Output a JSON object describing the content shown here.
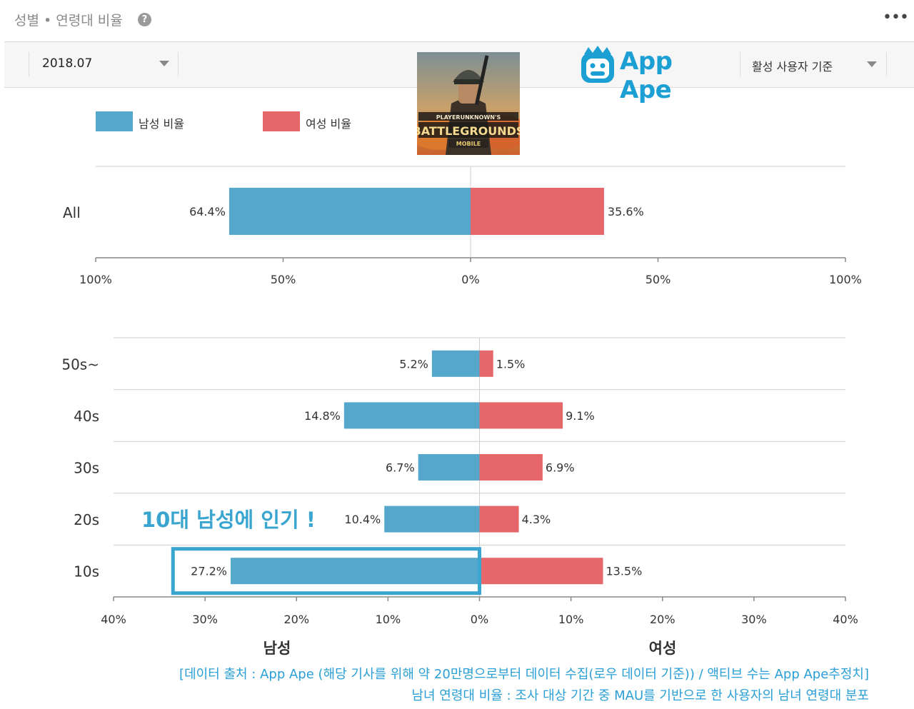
{
  "header": {
    "title": "성별 • 연령대 비율",
    "help_icon": "question-icon",
    "more_icon": "more-horizontal-icon",
    "more_glyph": "•••"
  },
  "toolbar": {
    "date_value": "2018.07",
    "basis_value": "활성 사용자 기준",
    "logo_text": "App Ape",
    "logo_color": "#1c9fd3"
  },
  "game_icon": {
    "name": "pubg-mobile-icon",
    "line1": "PLAYERUNKNOWN'S",
    "line2": "BATTLEGROUNDS",
    "line3": "MOBILE"
  },
  "colors": {
    "male": "#55a8cc",
    "female": "#e5676a",
    "highlight": "#3aa6d0",
    "grid": "#cfcfcf",
    "axis": "#888888"
  },
  "legend": {
    "male": "남성 비율",
    "female": "여성 비율"
  },
  "chart_data": [
    {
      "type": "bar",
      "orientation": "horizontal-diverging",
      "categories": [
        "All"
      ],
      "series": [
        {
          "name": "남성 비율",
          "values": [
            64.4
          ]
        },
        {
          "name": "여성 비율",
          "values": [
            35.6
          ]
        }
      ],
      "value_labels": {
        "male": [
          "64.4%"
        ],
        "female": [
          "35.6%"
        ]
      },
      "xlim": [
        -100,
        100
      ],
      "x_ticks": [
        "100%",
        "50%",
        "0%",
        "50%",
        "100%"
      ],
      "grid": true
    },
    {
      "type": "bar",
      "orientation": "horizontal-diverging",
      "categories": [
        "50s~",
        "40s",
        "30s",
        "20s",
        "10s"
      ],
      "series": [
        {
          "name": "남성",
          "values": [
            5.2,
            14.8,
            6.7,
            10.4,
            27.2
          ]
        },
        {
          "name": "여성",
          "values": [
            1.5,
            9.1,
            6.9,
            4.3,
            13.5
          ]
        }
      ],
      "value_labels": {
        "male": [
          "5.2%",
          "14.8%",
          "6.7%",
          "10.4%",
          "27.2%"
        ],
        "female": [
          "1.5%",
          "9.1%",
          "6.9%",
          "4.3%",
          "13.5%"
        ]
      },
      "xlim": [
        -40,
        40
      ],
      "x_ticks": [
        "40%",
        "30%",
        "20%",
        "10%",
        "0%",
        "10%",
        "20%",
        "30%",
        "40%"
      ],
      "xlabel_left": "남성",
      "xlabel_right": "여성",
      "annotation": "10대 남성에 인기 !",
      "highlight_category": "10s",
      "grid": true
    }
  ],
  "notes": {
    "line1": "[데이터 출처 : App Ape (해당 기사를 위해 약 20만명으로부터 데이터 수집(로우 데이터 기준)) / 액티브 수는 App Ape추정치]",
    "line2": "남녀 연령대 비율 : 조사 대상 기간 중 MAU를 기반으로 한 사용자의 남녀 연령대 분포"
  }
}
